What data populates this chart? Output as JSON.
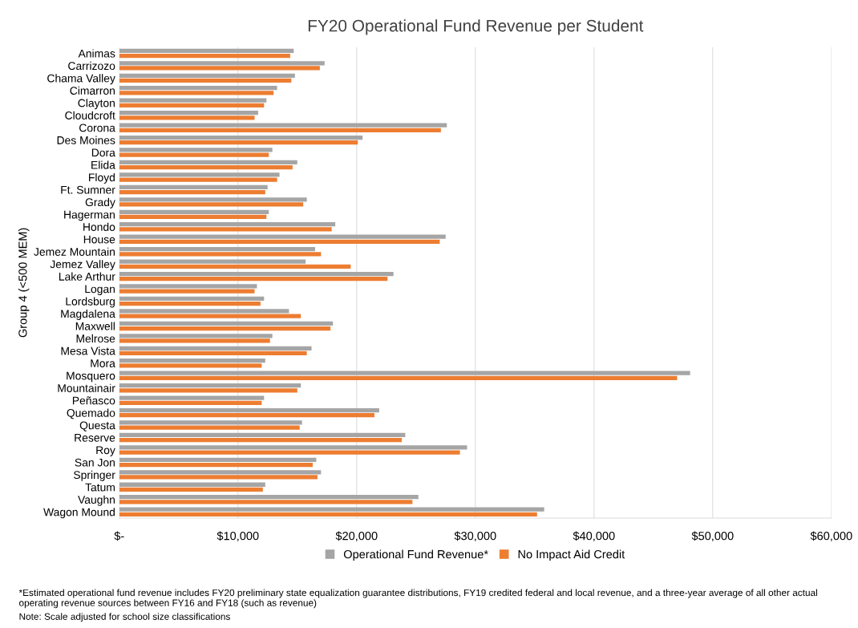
{
  "chart_data": {
    "type": "bar",
    "orientation": "horizontal",
    "title": "FY20 Operational Fund Revenue per Student",
    "ylabel": "Group 4 (<500 MEM)",
    "categories": [
      "Animas",
      "Carrizozo",
      "Chama Valley",
      "Cimarron",
      "Clayton",
      "Cloudcroft",
      "Corona",
      "Des Moines",
      "Dora",
      "Elida",
      "Floyd",
      "Ft. Sumner",
      "Grady",
      "Hagerman",
      "Hondo",
      "House",
      "Jemez Mountain",
      "Jemez Valley",
      "Lake Arthur",
      "Logan",
      "Lordsburg",
      "Magdalena",
      "Maxwell",
      "Melrose",
      "Mesa Vista",
      "Mora",
      "Mosquero",
      "Mountainair",
      "Peñasco",
      "Quemado",
      "Questa",
      "Reserve",
      "Roy",
      "San Jon",
      "Springer",
      "Tatum",
      "Vaughn",
      "Wagon Mound"
    ],
    "series": [
      {
        "name": "Operational Fund Revenue*",
        "color": "#a5a5a5",
        "values": [
          14700,
          17300,
          14800,
          13300,
          12400,
          11700,
          27600,
          20500,
          12900,
          15000,
          13500,
          12500,
          15800,
          12600,
          18200,
          27500,
          16500,
          15700,
          23100,
          11600,
          12200,
          14300,
          18000,
          12900,
          16200,
          12300,
          48100,
          15300,
          12200,
          21900,
          15400,
          24100,
          29300,
          16600,
          17000,
          12300,
          25200,
          35800
        ]
      },
      {
        "name": "No Impact Aid Credit",
        "color": "#ed7d31",
        "values": [
          14400,
          16900,
          14500,
          13000,
          12200,
          11400,
          27100,
          20100,
          12600,
          14600,
          13300,
          12300,
          15500,
          12400,
          17900,
          27000,
          17000,
          19500,
          22600,
          11400,
          11900,
          15300,
          17800,
          12700,
          15800,
          12000,
          47000,
          15000,
          12000,
          21500,
          15200,
          23800,
          28700,
          16300,
          16700,
          12100,
          24700,
          35200
        ]
      }
    ],
    "xlim": [
      0,
      60000
    ],
    "xticks": [
      {
        "value": 0,
        "label": "$-"
      },
      {
        "value": 10000,
        "label": "$10,000"
      },
      {
        "value": 20000,
        "label": "$20,000"
      },
      {
        "value": 30000,
        "label": "$30,000"
      },
      {
        "value": 40000,
        "label": "$40,000"
      },
      {
        "value": 50000,
        "label": "$50,000"
      },
      {
        "value": 60000,
        "label": "$60,000"
      }
    ],
    "grid": "x",
    "legend": "bottom",
    "annotations": [
      "*Estimated operational fund revenue includes FY20 preliminary state equalization guarantee distributions, FY19 credited federal and local revenue, and a three-year average of all other actual operating revenue sources between FY16 and FY18 (such as revenue)",
      "Note: Scale adjusted for school size classifications"
    ]
  }
}
